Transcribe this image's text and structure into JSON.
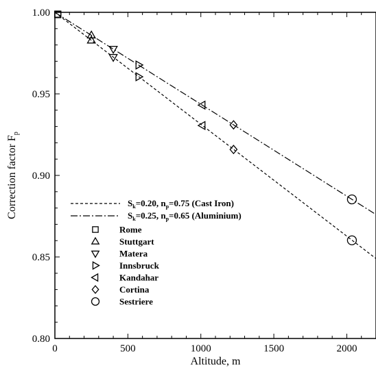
{
  "chart_data": {
    "type": "line",
    "xlabel": "Altitude, m",
    "ylabel_main": "Correction factor F",
    "ylabel_sub": "p",
    "xlim": [
      0,
      2200
    ],
    "ylim": [
      0.8,
      1.0
    ],
    "xticks": [
      0,
      500,
      1000,
      1500,
      2000
    ],
    "xtick_labels": [
      "0",
      "500",
      "1000",
      "1500",
      "2000"
    ],
    "yticks": [
      0.8,
      0.85,
      0.9,
      0.95,
      1.0
    ],
    "ytick_labels": [
      "0.80",
      "0.85",
      "0.90",
      "0.95",
      "1.00"
    ],
    "grid": false,
    "legend_placement": "bottom-left",
    "series": [
      {
        "name": "Sk=0.20, np=0.75 (Cast Iron)",
        "label": {
          "a": "S",
          "a_sub": "k",
          "b": "=0.20, n",
          "b_sub": "p",
          "c": "=0.75 (Cast Iron)"
        },
        "style": "dashed",
        "x": [
          0,
          2200
        ],
        "y": [
          1.0,
          0.849
        ]
      },
      {
        "name": "Sk=0.25, np=0.65 (Aluminium)",
        "label": {
          "a": "S",
          "a_sub": "k",
          "b": "=0.25, n",
          "b_sub": "p",
          "c": "=0.65 (Aluminium)"
        },
        "style": "dashdot",
        "x": [
          0,
          2200
        ],
        "y": [
          1.0,
          0.876
        ]
      }
    ],
    "points": [
      {
        "name": "Rome",
        "marker": "square",
        "x": 20,
        "y": [
          0.9986,
          0.9989
        ]
      },
      {
        "name": "Stuttgart",
        "marker": "triangle-up",
        "x": 250,
        "y": [
          0.9828,
          0.9859
        ]
      },
      {
        "name": "Matera",
        "marker": "triangle-down",
        "x": 400,
        "y": [
          0.9725,
          0.9775
        ]
      },
      {
        "name": "Innsbruck",
        "marker": "triangle-right",
        "x": 574,
        "y": [
          0.9605,
          0.9677
        ]
      },
      {
        "name": "Kandahar",
        "marker": "triangle-left",
        "x": 1010,
        "y": [
          0.9306,
          0.9431
        ]
      },
      {
        "name": "Cortina",
        "marker": "diamond",
        "x": 1224,
        "y": [
          0.9159,
          0.931
        ]
      },
      {
        "name": "Sestriere",
        "marker": "circle",
        "x": 2035,
        "y": [
          0.8602,
          0.8853
        ]
      }
    ]
  }
}
